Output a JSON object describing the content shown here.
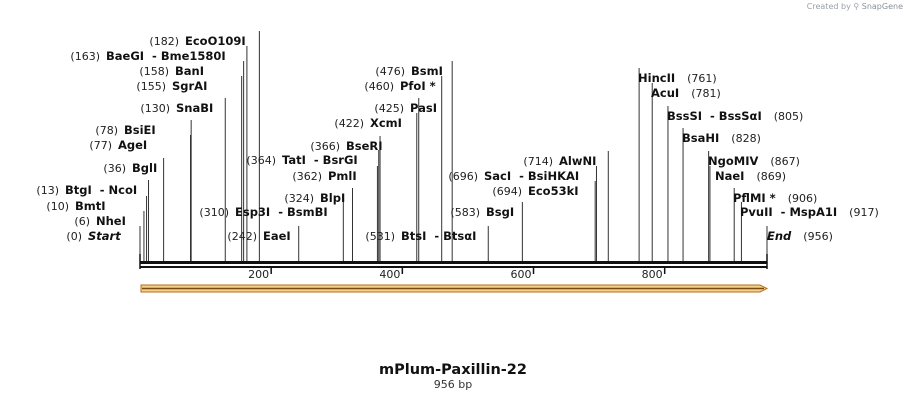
{
  "credit": {
    "prefix": "Created by",
    "brand": "SnapGene"
  },
  "title": "mPlum-Paxillin-22",
  "subtitle": "956 bp",
  "sequence_length": 956,
  "ticks": [
    {
      "value": 200,
      "label": "200"
    },
    {
      "value": 400,
      "label": "400"
    },
    {
      "value": 600,
      "label": "600"
    },
    {
      "value": 800,
      "label": "800"
    }
  ],
  "left_labels": [
    {
      "pos": "(182)",
      "name": "EcoO109I",
      "site": 182
    },
    {
      "pos": "(163)",
      "name": "BaeGI",
      "partner": "Bme1580I",
      "site": 163
    },
    {
      "pos": "(158)",
      "name": "BanI",
      "site": 158
    },
    {
      "pos": "(155)",
      "name": "SgrAI",
      "site": 155
    },
    {
      "pos": "(130)",
      "name": "SnaBI",
      "site": 130
    },
    {
      "pos": "(78)",
      "name": "BsiEI",
      "site": 78
    },
    {
      "pos": "(77)",
      "name": "AgeI",
      "site": 77
    },
    {
      "pos": "(36)",
      "name": "BglI",
      "site": 36
    },
    {
      "pos": "(13)",
      "name": "BtgI",
      "partner": "NcoI",
      "site": 13
    },
    {
      "pos": "(10)",
      "name": "BmtI",
      "site": 10
    },
    {
      "pos": "(6)",
      "name": "NheI",
      "site": 6
    },
    {
      "pos": "(0)",
      "name": "Start",
      "site": 0,
      "italic": true
    }
  ],
  "middle_labels": [
    {
      "pos": "(476)",
      "name": "BsmI",
      "site": 476
    },
    {
      "pos": "(460)",
      "name": "PfoI *",
      "site": 460
    },
    {
      "pos": "(425)",
      "name": "PasI",
      "site": 425
    },
    {
      "pos": "(422)",
      "name": "XcmI",
      "site": 422
    },
    {
      "pos": "(366)",
      "name": "BseRI",
      "site": 366
    },
    {
      "pos": "(364)",
      "name": "TatI",
      "partner": "BsrGI",
      "site": 364
    },
    {
      "pos": "(362)",
      "name": "PmlI",
      "site": 362
    },
    {
      "pos": "(324)",
      "name": "BlpI",
      "site": 324
    },
    {
      "pos": "(310)",
      "name": "Esp3I",
      "partner": "BsmBI",
      "site": 310
    },
    {
      "pos": "(242)",
      "name": "EaeI",
      "site": 242
    },
    {
      "pos": "(714)",
      "name": "AlwNI",
      "site": 714
    },
    {
      "pos": "(696)",
      "name": "SacI",
      "partner": "BsiHKAI",
      "site": 696
    },
    {
      "pos": "(694)",
      "name": "Eco53kI",
      "site": 694
    },
    {
      "pos": "(583)",
      "name": "BsgI",
      "site": 583
    },
    {
      "pos": "(531)",
      "name": "BtsI",
      "partner": "BtsαI",
      "site": 531
    }
  ],
  "right_labels": [
    {
      "name": "HincII",
      "pos": "(761)",
      "site": 761
    },
    {
      "name": "AcuI",
      "pos": "(781)",
      "site": 781
    },
    {
      "name": "BssSI",
      "partner": "BssSαI",
      "pos": "(805)",
      "site": 805
    },
    {
      "name": "BsaHI",
      "pos": "(828)",
      "site": 828
    },
    {
      "name": "NgoMIV",
      "pos": "(867)",
      "site": 867
    },
    {
      "name": "NaeI",
      "pos": "(869)",
      "site": 869
    },
    {
      "name": "PflMI *",
      "pos": "(906)",
      "site": 906
    },
    {
      "name": "PvuII",
      "partner": "MspA1I",
      "pos": "(917)",
      "site": 917
    },
    {
      "name": "End",
      "pos": "(956)",
      "site": 956,
      "italic": true
    }
  ],
  "colors": {
    "backbone": "#111111",
    "feature_fill": "#f3d08a",
    "feature_stroke": "#b86a1c"
  }
}
